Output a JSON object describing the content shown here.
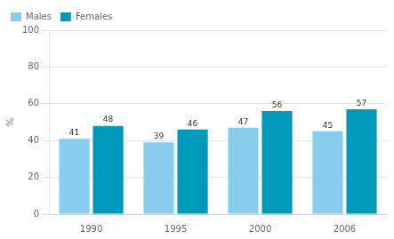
{
  "chart_data": {
    "type": "bar",
    "categories": [
      "1990",
      "1995",
      "2000",
      "2006"
    ],
    "series": [
      {
        "name": "Males",
        "color": "#88CCEE",
        "values": [
          41,
          39,
          47,
          45
        ]
      },
      {
        "name": "Females",
        "color": "#0099BB",
        "values": [
          48,
          46,
          56,
          57
        ]
      }
    ],
    "ylabel": "%",
    "ylim": [
      0,
      100
    ],
    "yticks": [
      0,
      20,
      40,
      60,
      80,
      100
    ],
    "grid": true,
    "legend": "upper left",
    "data_labels": true
  }
}
